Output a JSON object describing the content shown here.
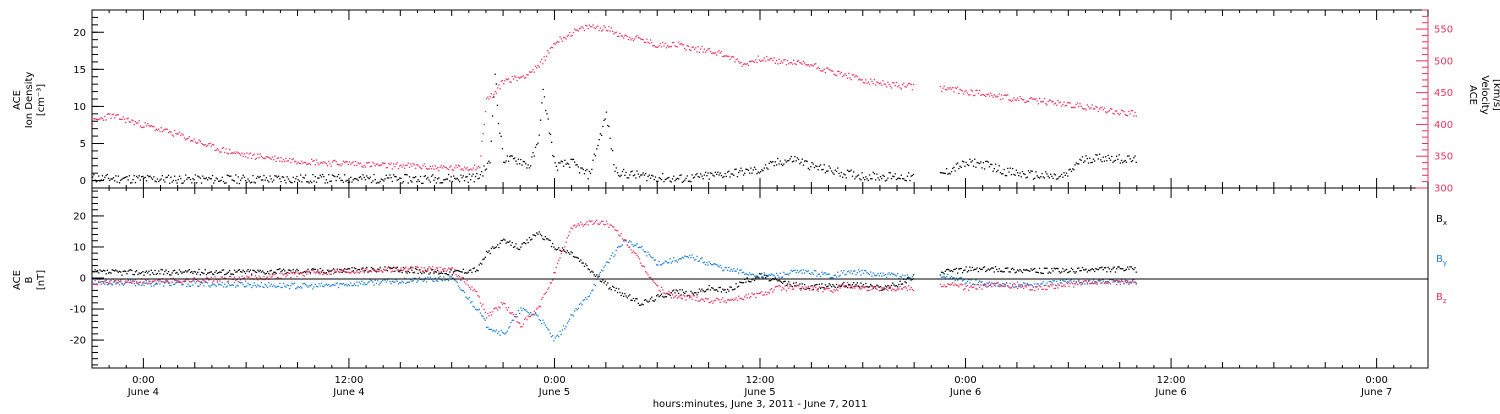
{
  "chart_data": [
    {
      "type": "scatter",
      "panel": "top",
      "left_axis_label": [
        "ACE",
        "Ion Density",
        "[cm⁻³]"
      ],
      "right_axis_label": [
        "ACE",
        "Velocity",
        "[km/s]"
      ],
      "left_ticks": [
        "0",
        "5",
        "10",
        "15",
        "20"
      ],
      "right_ticks": [
        "300",
        "350",
        "400",
        "450",
        "500",
        "550"
      ],
      "ylim_left": [
        -1,
        23
      ],
      "ylim_right": [
        300,
        580
      ],
      "series": [
        {
          "name": "",
          "axis": "left",
          "color": "#000000",
          "points": [
            [
              -3.0,
              0.4
            ],
            [
              0,
              0.3
            ],
            [
              4,
              0.25
            ],
            [
              8,
              0.3
            ],
            [
              12,
              0.35
            ],
            [
              16,
              0.3
            ],
            [
              18,
              0.4
            ],
            [
              19.5,
              0.5
            ],
            [
              20.2,
              2.5
            ],
            [
              20.5,
              15
            ],
            [
              20.7,
              8
            ],
            [
              21,
              3
            ],
            [
              22,
              2.8
            ],
            [
              22.5,
              2
            ],
            [
              23,
              5
            ],
            [
              23.3,
              12
            ],
            [
              23.6,
              8
            ],
            [
              24,
              2
            ],
            [
              25,
              2.5
            ],
            [
              25.5,
              1.5
            ],
            [
              26,
              0.8
            ],
            [
              26.5,
              5
            ],
            [
              27,
              9
            ],
            [
              27.5,
              1.5
            ],
            [
              28,
              1
            ],
            [
              30,
              0.5
            ],
            [
              31,
              0.3
            ],
            [
              32,
              0.4
            ],
            [
              34,
              1
            ],
            [
              36,
              1.5
            ],
            [
              37,
              2.5
            ],
            [
              38,
              3
            ],
            [
              39,
              2
            ],
            [
              40,
              1.5
            ],
            [
              41,
              1
            ],
            [
              42,
              0.7
            ],
            [
              44,
              0.6
            ],
            [
              45,
              0.5
            ],
            [
              46.5,
              0.8
            ],
            [
              47.5,
              2
            ],
            [
              48.5,
              2.5
            ],
            [
              49.5,
              2
            ],
            [
              50,
              1.5
            ],
            [
              51,
              1
            ],
            [
              52,
              0.8
            ],
            [
              53.5,
              0.5
            ],
            [
              54,
              1
            ],
            [
              54.5,
              2.5
            ],
            [
              55,
              3
            ],
            [
              56,
              3.2
            ],
            [
              57,
              3
            ],
            [
              58,
              2.8
            ]
          ]
        },
        {
          "name": "",
          "axis": "right",
          "color": "#e8345f",
          "points": [
            [
              -3.0,
              405
            ],
            [
              -2,
              415
            ],
            [
              -1,
              408
            ],
            [
              0,
              400
            ],
            [
              1,
              392
            ],
            [
              2,
              385
            ],
            [
              3,
              375
            ],
            [
              4,
              365
            ],
            [
              5,
              358
            ],
            [
              6,
              352
            ],
            [
              7,
              350
            ],
            [
              8,
              346
            ],
            [
              9,
              344
            ],
            [
              10,
              342
            ],
            [
              11,
              340
            ],
            [
              12,
              340
            ],
            [
              13,
              338
            ],
            [
              14,
              336
            ],
            [
              15,
              336
            ],
            [
              16,
              335
            ],
            [
              17,
              333
            ],
            [
              18,
              332
            ],
            [
              19,
              333
            ],
            [
              19.6,
              335
            ],
            [
              20,
              440
            ],
            [
              20.5,
              450
            ],
            [
              21,
              470
            ],
            [
              22,
              475
            ],
            [
              23,
              490
            ],
            [
              24,
              530
            ],
            [
              25,
              545
            ],
            [
              26,
              555
            ],
            [
              27,
              552
            ],
            [
              28,
              540
            ],
            [
              29,
              535
            ],
            [
              30,
              525
            ],
            [
              31,
              528
            ],
            [
              32,
              520
            ],
            [
              33,
              518
            ],
            [
              34,
              510
            ],
            [
              35,
              495
            ],
            [
              36,
              505
            ],
            [
              37,
              500
            ],
            [
              38,
              498
            ],
            [
              39,
              495
            ],
            [
              40,
              485
            ],
            [
              41,
              478
            ],
            [
              42,
              470
            ],
            [
              43,
              465
            ],
            [
              44,
              462
            ],
            [
              45,
              460
            ],
            [
              46.5,
              458
            ],
            [
              47.5,
              455
            ],
            [
              48,
              452
            ],
            [
              49,
              450
            ],
            [
              50,
              445
            ],
            [
              51,
              440
            ],
            [
              52,
              438
            ],
            [
              53,
              436
            ],
            [
              54,
              432
            ],
            [
              55,
              428
            ],
            [
              56,
              425
            ],
            [
              57,
              420
            ],
            [
              58,
              418
            ]
          ]
        }
      ]
    },
    {
      "type": "scatter",
      "panel": "bottom",
      "left_axis_label": [
        "ACE",
        "B",
        "[nT]"
      ],
      "left_ticks": [
        "-20",
        "-10",
        "0",
        "10",
        "20"
      ],
      "ylim": [
        -29,
        29
      ],
      "series": [
        {
          "name": "B",
          "subscript": "x",
          "color": "#000000",
          "points": [
            [
              -3.0,
              2
            ],
            [
              0,
              2
            ],
            [
              6,
              2.2
            ],
            [
              10,
              2.5
            ],
            [
              14,
              3
            ],
            [
              18,
              2
            ],
            [
              19.5,
              3
            ],
            [
              20,
              8
            ],
            [
              21,
              12
            ],
            [
              22,
              10
            ],
            [
              23,
              15
            ],
            [
              24,
              10
            ],
            [
              25,
              8
            ],
            [
              26,
              3
            ],
            [
              27,
              -2
            ],
            [
              28,
              -5
            ],
            [
              29,
              -8
            ],
            [
              30,
              -6
            ],
            [
              31,
              -4
            ],
            [
              32,
              -5
            ],
            [
              33,
              -3
            ],
            [
              34,
              -4
            ],
            [
              35,
              -1
            ],
            [
              36,
              1
            ],
            [
              37,
              -1
            ],
            [
              38,
              -2
            ],
            [
              39,
              -3
            ],
            [
              40,
              -2
            ],
            [
              41,
              -2
            ],
            [
              42,
              -2
            ],
            [
              43,
              -3
            ],
            [
              44,
              -2
            ],
            [
              45,
              1
            ],
            [
              46.5,
              2
            ],
            [
              47.5,
              2.5
            ],
            [
              48,
              3
            ],
            [
              50,
              3
            ],
            [
              52,
              2.5
            ],
            [
              54,
              2.5
            ],
            [
              56,
              3
            ],
            [
              58,
              3
            ]
          ]
        },
        {
          "name": "B",
          "subscript": "y",
          "color": "#1f7fd8",
          "points": [
            [
              -3.0,
              -1
            ],
            [
              0,
              -1.5
            ],
            [
              6,
              -2
            ],
            [
              10,
              -2.5
            ],
            [
              14,
              -1
            ],
            [
              18,
              0
            ],
            [
              19.5,
              -10
            ],
            [
              20,
              -15
            ],
            [
              21,
              -18
            ],
            [
              22,
              -10
            ],
            [
              23,
              -12
            ],
            [
              24,
              -20
            ],
            [
              25,
              -12
            ],
            [
              26,
              -5
            ],
            [
              27,
              5
            ],
            [
              28,
              12
            ],
            [
              29,
              10
            ],
            [
              30,
              5
            ],
            [
              31,
              6
            ],
            [
              32,
              7
            ],
            [
              33,
              5
            ],
            [
              34,
              3
            ],
            [
              35,
              2
            ],
            [
              36,
              1
            ],
            [
              37,
              1
            ],
            [
              38,
              2
            ],
            [
              39,
              2
            ],
            [
              40,
              1
            ],
            [
              41,
              2
            ],
            [
              42,
              2
            ],
            [
              43,
              1
            ],
            [
              44,
              1
            ],
            [
              45,
              0
            ],
            [
              46.5,
              1
            ],
            [
              47.5,
              0
            ],
            [
              48,
              -1
            ],
            [
              50,
              -2
            ],
            [
              52,
              -2
            ],
            [
              54,
              -1
            ],
            [
              56,
              -1
            ],
            [
              58,
              -1
            ]
          ]
        },
        {
          "name": "B",
          "subscript": "z",
          "color": "#e8345f",
          "points": [
            [
              -3.0,
              -1
            ],
            [
              0,
              -1
            ],
            [
              6,
              0
            ],
            [
              10,
              2
            ],
            [
              14,
              3
            ],
            [
              18,
              3
            ],
            [
              19.5,
              -5
            ],
            [
              20,
              -12
            ],
            [
              21,
              -8
            ],
            [
              22,
              -15
            ],
            [
              23,
              -10
            ],
            [
              24,
              2
            ],
            [
              25,
              17
            ],
            [
              26,
              18
            ],
            [
              27,
              18
            ],
            [
              28,
              13
            ],
            [
              29,
              5
            ],
            [
              30,
              -3
            ],
            [
              31,
              -6
            ],
            [
              32,
              -6
            ],
            [
              33,
              -7
            ],
            [
              34,
              -7
            ],
            [
              35,
              -6
            ],
            [
              36,
              -5
            ],
            [
              37,
              -3
            ],
            [
              38,
              -3
            ],
            [
              39,
              -3
            ],
            [
              40,
              -4
            ],
            [
              41,
              -2
            ],
            [
              42,
              -3
            ],
            [
              43,
              -3
            ],
            [
              44,
              -3
            ],
            [
              45,
              -3
            ],
            [
              46.5,
              -2
            ],
            [
              47.5,
              -2
            ],
            [
              48,
              -3
            ],
            [
              50,
              -2
            ],
            [
              52,
              -3
            ],
            [
              54,
              -2
            ],
            [
              56,
              -1
            ],
            [
              58,
              -1
            ]
          ]
        }
      ]
    }
  ],
  "x_axis": {
    "tick_hours": [
      0,
      12,
      24,
      36,
      48,
      60,
      72
    ],
    "ticks": [
      {
        "time": "0:00",
        "date": "June 4"
      },
      {
        "time": "12:00",
        "date": "June 4"
      },
      {
        "time": "0:00",
        "date": "June 5"
      },
      {
        "time": "12:00",
        "date": "June 5"
      },
      {
        "time": "0:00",
        "date": "June 6"
      },
      {
        "time": "12:00",
        "date": "June 6"
      },
      {
        "time": "0:00",
        "date": "June 7"
      }
    ],
    "range_hours": [
      -3,
      75
    ],
    "label": "hours:minutes, June  3, 2011 - June  7, 2011"
  }
}
